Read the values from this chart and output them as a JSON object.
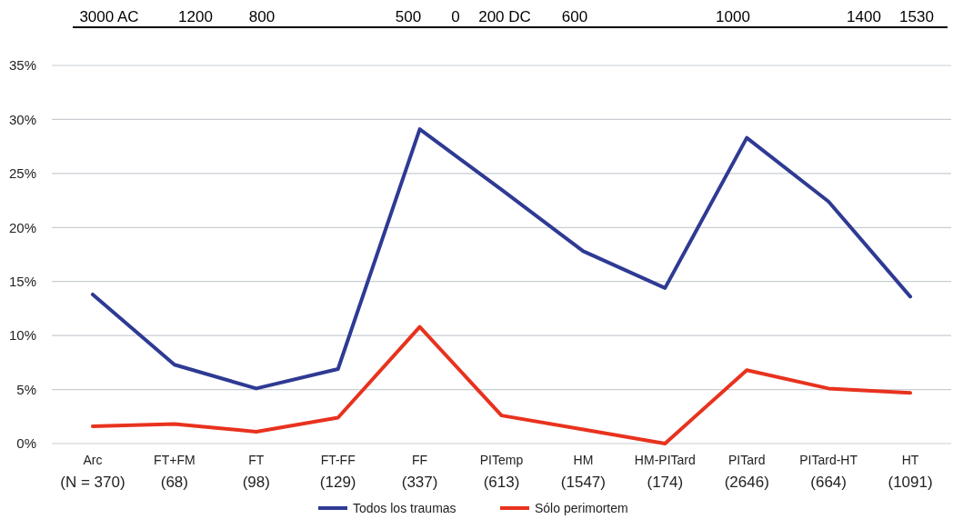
{
  "chart_data": {
    "type": "line",
    "categories": [
      "Arc\n(N = 370)",
      "FT+FM\n(68)",
      "FT\n(98)",
      "FT-FF\n(129)",
      "FF\n(337)",
      "PITemp\n(613)",
      "HM\n(1547)",
      "HM-PITard\n(174)",
      "PITard\n(2646)",
      "PITard-HT\n(664)",
      "HT\n(1091)"
    ],
    "series": [
      {
        "name": "Todos los traumas",
        "color": "#2e3a93",
        "values": [
          13.8,
          7.3,
          5.1,
          6.9,
          29.1,
          23.5,
          17.8,
          14.4,
          28.3,
          22.4,
          13.6
        ]
      },
      {
        "name": "Sólo perimortem",
        "color": "#e8321e",
        "values": [
          1.6,
          1.8,
          1.1,
          2.4,
          10.8,
          2.6,
          1.3,
          0,
          6.8,
          5.1,
          4.7
        ]
      }
    ],
    "ylim": [
      0,
      35
    ],
    "yticks": [
      {
        "value": 0,
        "label": "0%"
      },
      {
        "value": 5,
        "label": "5%"
      },
      {
        "value": 10,
        "label": "10%"
      },
      {
        "value": 15,
        "label": "15%"
      },
      {
        "value": 20,
        "label": "20%"
      },
      {
        "value": 25,
        "label": "25%"
      },
      {
        "value": 30,
        "label": "30%"
      },
      {
        "value": 35,
        "label": "35%"
      }
    ],
    "grid": "y",
    "legend": "bottom",
    "marker": "none",
    "line_style": "solid",
    "annotations": [
      "3000 AC",
      "1200",
      "800",
      "500",
      "0",
      "200 DC",
      "600",
      "1000",
      "1400",
      "1530"
    ]
  }
}
